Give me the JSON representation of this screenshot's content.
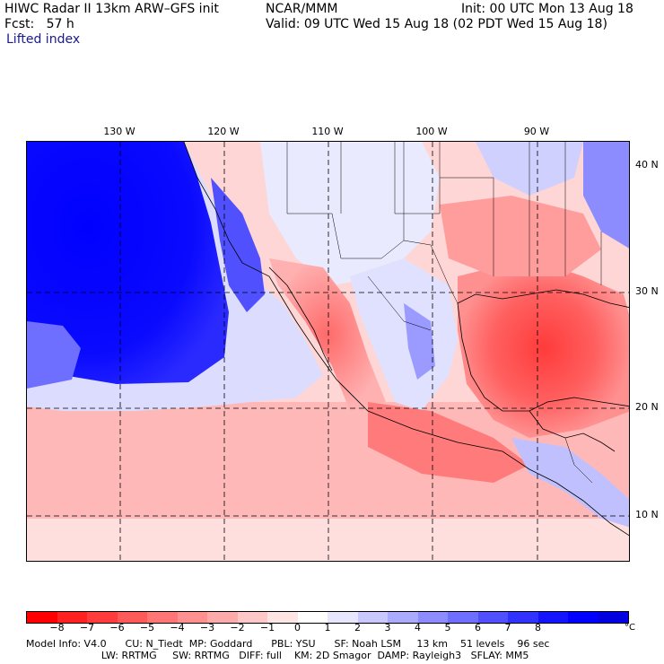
{
  "header": {
    "model": "HIWC Radar II 13km ARW–GFS init",
    "org": "NCAR/MMM",
    "init": "Init: 00 UTC Mon 13 Aug 18",
    "fcst": "Fcst:   57 h",
    "valid": "Valid: 09 UTC Wed 15 Aug 18 (02 PDT Wed 15 Aug 18)",
    "field": "Lifted index"
  },
  "map": {
    "lon_labels": [
      "130 W",
      "120 W",
      "110 W",
      "100 W",
      "90 W"
    ],
    "lat_labels": [
      "40 N",
      "30 N",
      "20 N",
      "10 N"
    ]
  },
  "colorbar": {
    "colors": [
      "#ff0000",
      "#ff2020",
      "#ff3b3b",
      "#ff5a5a",
      "#ff7676",
      "#ff9090",
      "#ffaaaa",
      "#ffc8c8",
      "#ffe4e4",
      "#ffffff",
      "#e6e6ff",
      "#c8c8ff",
      "#aaaaff",
      "#8c8cff",
      "#6e6eff",
      "#5050ff",
      "#3232ff",
      "#1414ff",
      "#0000ff",
      "#0000e0"
    ],
    "ticks": [
      "−8",
      "−7",
      "−6",
      "−5",
      "−4",
      "−3",
      "−2",
      "−1",
      "0",
      "1",
      "2",
      "3",
      "4",
      "5",
      "6",
      "7",
      "8"
    ],
    "unit": "°C"
  },
  "footer": {
    "line1": "Model Info: V4.0      CU: N_Tiedt  MP: Goddard      PBL: YSU      SF: Noah LSM     13 km    51 levels    96 sec",
    "line2": "                        LW: RRTMG     SW: RRTMG   DIFF: full    KM: 2D Smagor  DAMP: Rayleigh3   SFLAY: MM5"
  }
}
